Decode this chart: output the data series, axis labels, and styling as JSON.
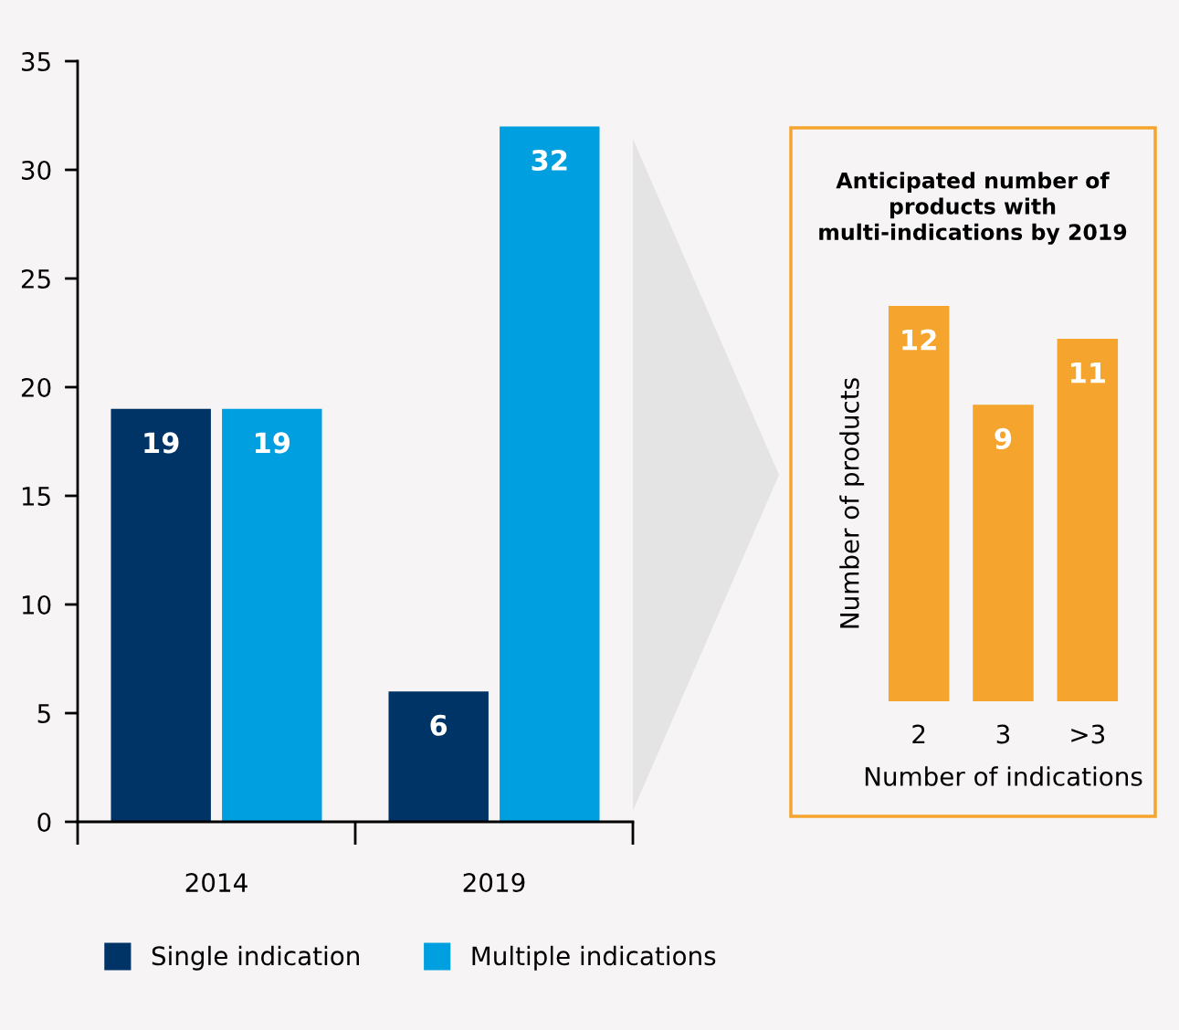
{
  "chart_data": [
    {
      "type": "bar",
      "categories": [
        "2014",
        "2019"
      ],
      "series": [
        {
          "name": "Single indication",
          "color": "#003366",
          "values": [
            19,
            6
          ]
        },
        {
          "name": "Multiple indications",
          "color": "#009fe0",
          "values": [
            19,
            32
          ]
        }
      ],
      "ylim": [
        0,
        35
      ],
      "yticks": [
        0,
        5,
        10,
        15,
        20,
        25,
        30,
        35
      ],
      "data_labels": true,
      "legend": "bottom",
      "grid": false
    },
    {
      "type": "bar",
      "title": "Anticipated number of\nproducts with\nmulti-indications by 2019",
      "xlabel": "Number of indications",
      "ylabel": "Number of products",
      "categories": [
        "2",
        "3",
        ">3"
      ],
      "values": [
        12,
        9,
        11
      ],
      "color": "#f5a42d",
      "data_labels": true,
      "tick_labels": "x"
    }
  ]
}
